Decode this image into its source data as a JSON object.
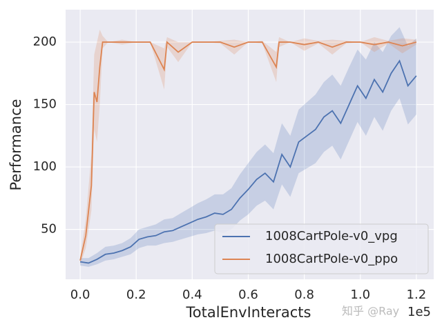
{
  "chart_data": {
    "type": "line",
    "x_label": "TotalEnvInteracts",
    "y_label": "Performance",
    "x_offset": "1e5",
    "watermark": "知乎 @Ray",
    "xlim": [
      -0.052,
      1.262
    ],
    "ylim": [
      10,
      226
    ],
    "xticks": [
      {
        "value": 0,
        "label": "0.0"
      },
      0.2,
      0.4,
      0.6,
      0.8,
      {
        "value": 1,
        "label": "1.0"
      },
      1.2
    ],
    "yticks": [
      50,
      100,
      150,
      200
    ],
    "grid": true,
    "legend": "lower right",
    "series": [
      {
        "name": "1008CartPole-v0_vpg",
        "color": "#4c72b0",
        "x": [
          0,
          0.03,
          0.06,
          0.09,
          0.12,
          0.15,
          0.18,
          0.21,
          0.24,
          0.27,
          0.3,
          0.33,
          0.36,
          0.39,
          0.42,
          0.45,
          0.48,
          0.51,
          0.54,
          0.57,
          0.6,
          0.63,
          0.66,
          0.69,
          0.72,
          0.75,
          0.78,
          0.81,
          0.84,
          0.87,
          0.9,
          0.93,
          0.96,
          0.99,
          1.02,
          1.05,
          1.08,
          1.11,
          1.14,
          1.17,
          1.2
        ],
        "values": [
          24,
          23,
          26,
          30,
          31,
          33,
          36,
          42,
          44,
          45,
          48,
          49,
          52,
          55,
          58,
          60,
          63,
          62,
          66,
          75,
          82,
          90,
          95,
          88,
          110,
          100,
          120,
          125,
          130,
          140,
          145,
          135,
          150,
          165,
          155,
          170,
          160,
          175,
          185,
          165,
          173
        ],
        "lower": [
          21,
          20,
          22,
          25,
          26,
          28,
          30,
          35,
          37,
          37,
          39,
          40,
          42,
          44,
          46,
          47,
          49,
          47,
          50,
          57,
          62,
          69,
          73,
          66,
          86,
          76,
          95,
          99,
          103,
          112,
          117,
          106,
          121,
          136,
          125,
          140,
          129,
          145,
          155,
          134,
          142
        ],
        "upper": [
          27,
          27,
          31,
          36,
          37,
          39,
          43,
          50,
          52,
          54,
          58,
          59,
          63,
          67,
          71,
          74,
          78,
          78,
          83,
          94,
          103,
          112,
          118,
          111,
          135,
          125,
          146,
          152,
          158,
          168,
          174,
          165,
          180,
          194,
          186,
          200,
          192,
          205,
          212,
          197,
          203
        ]
      },
      {
        "name": "1008CartPole-v0_ppo",
        "color": "#dd8452",
        "x": [
          0,
          0.02,
          0.04,
          0.05,
          0.06,
          0.07,
          0.08,
          0.1,
          0.15,
          0.2,
          0.25,
          0.3,
          0.31,
          0.35,
          0.4,
          0.45,
          0.5,
          0.55,
          0.6,
          0.65,
          0.7,
          0.71,
          0.75,
          0.8,
          0.85,
          0.9,
          0.95,
          1,
          1.05,
          1.1,
          1.15,
          1.2
        ],
        "values": [
          25,
          45,
          85,
          160,
          152,
          180,
          200,
          200,
          200,
          200,
          200,
          178,
          200,
          192,
          200,
          200,
          200,
          196,
          200,
          200,
          180,
          200,
          200,
          198,
          200,
          196,
          200,
          200,
          198,
          200,
          197,
          200
        ],
        "lower": [
          22,
          35,
          65,
          130,
          120,
          150,
          195,
          200,
          198,
          200,
          200,
          162,
          196,
          184,
          200,
          200,
          199,
          190,
          200,
          199,
          168,
          196,
          200,
          193,
          199,
          190,
          199,
          200,
          192,
          199,
          191,
          198
        ],
        "upper": [
          28,
          58,
          110,
          190,
          200,
          210,
          205,
          200,
          202,
          200,
          200,
          195,
          204,
          200,
          200,
          200,
          201,
          202,
          200,
          201,
          192,
          204,
          200,
          203,
          201,
          202,
          201,
          200,
          204,
          201,
          203,
          202
        ]
      }
    ]
  }
}
